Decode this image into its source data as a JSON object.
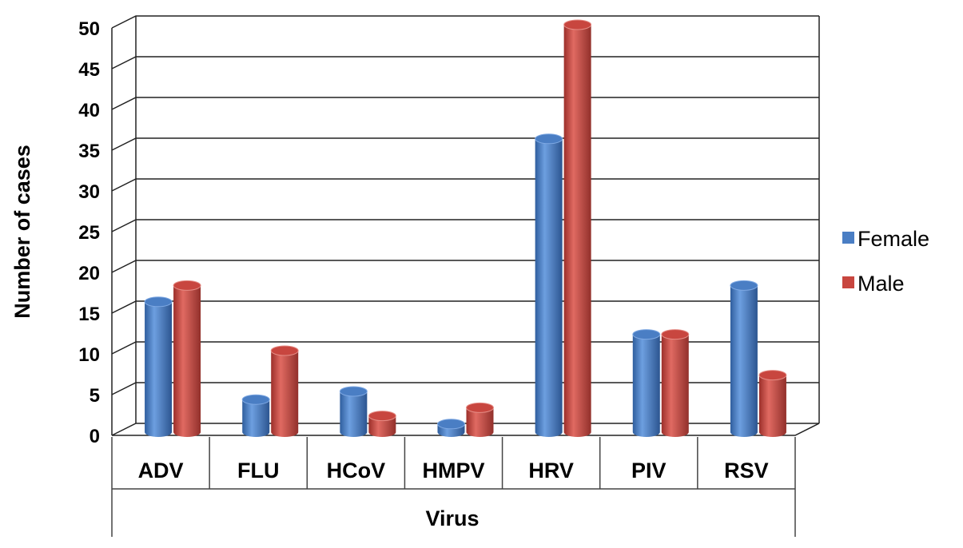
{
  "chart_data": {
    "type": "bar",
    "categories": [
      "ADV",
      "FLU",
      "HCoV",
      "HMPV",
      "HRV",
      "PIV",
      "RSV"
    ],
    "series": [
      {
        "name": "Female",
        "values": [
          16,
          4,
          5,
          1,
          36,
          12,
          18
        ],
        "color": "#4a7ec4"
      },
      {
        "name": "Male",
        "values": [
          18,
          10,
          2,
          3,
          50,
          12,
          7
        ],
        "color": "#c8463f"
      }
    ],
    "title": "",
    "xlabel": "Virus",
    "ylabel": "Number of cases",
    "ylim": [
      0,
      50
    ],
    "yticks": [
      0,
      5,
      10,
      15,
      20,
      25,
      30,
      35,
      40,
      45,
      50
    ],
    "grid": true,
    "legend_position": "right",
    "style": "3d-cylinder"
  }
}
